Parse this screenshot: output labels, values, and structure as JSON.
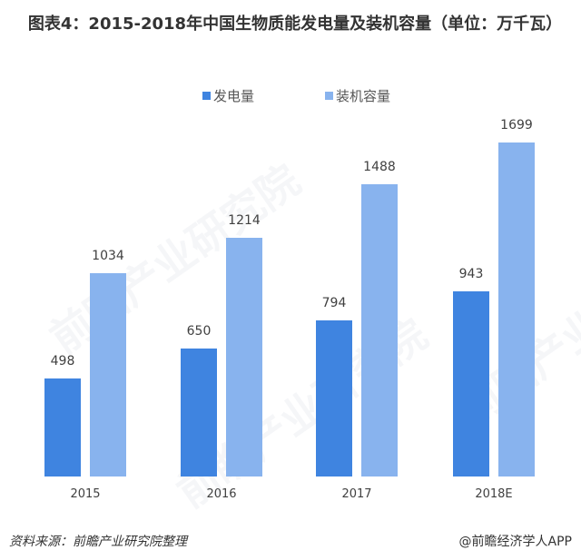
{
  "title": "图表4：2015-2018年中国生物质能发电量及装机容量（单位：万千瓦）",
  "legend": [
    {
      "label": "发电量",
      "color": "#3f84e0"
    },
    {
      "label": "装机容量",
      "color": "#88b3ee"
    }
  ],
  "chart_data": {
    "type": "bar",
    "title": "图表4：2015-2018年中国生物质能发电量及装机容量（单位：万千瓦）",
    "categories": [
      "2015",
      "2016",
      "2017",
      "2018E"
    ],
    "series": [
      {
        "name": "发电量",
        "values": [
          498,
          650,
          794,
          943
        ],
        "color": "#3f84e0"
      },
      {
        "name": "装机容量",
        "values": [
          1034,
          1214,
          1488,
          1699
        ],
        "color": "#88b3ee"
      }
    ],
    "xlabel": "",
    "ylabel": "",
    "ylim": [
      0,
      1699
    ],
    "grid": false,
    "legend_position": "top",
    "data_labels": true
  },
  "footer": {
    "source": "资料来源：前瞻产业研究院整理",
    "credit": "@前瞻经济学人APP"
  },
  "watermark": "前瞻产业研究院"
}
